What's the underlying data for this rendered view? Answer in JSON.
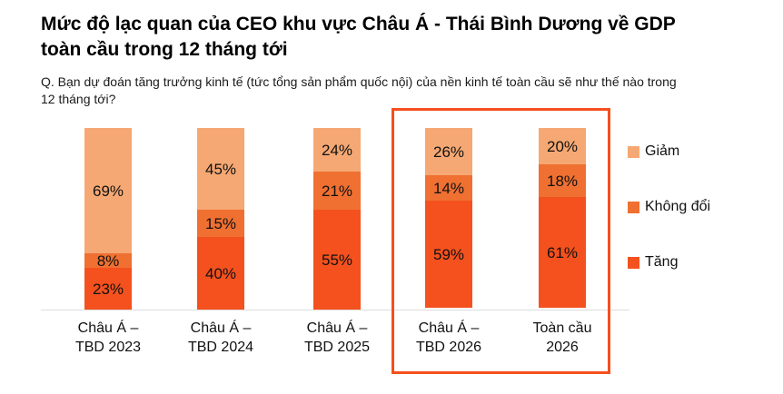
{
  "title": "Mức độ lạc quan của CEO khu vực Châu Á - Thái Bình Dương về GDP toàn cầu trong 12 tháng tới",
  "subtitle": "Q. Bạn dự đoán tăng trưởng kinh tế (tức tổng sản phẩm quốc nội) của nền kinh tế toàn cầu sẽ như thế nào trong 12 tháng tới?",
  "chart_data": {
    "type": "bar",
    "stacked": true,
    "unit": "%",
    "categories": [
      "Châu Á – TBD 2023",
      "Châu Á – TBD 2024",
      "Châu Á – TBD 2025",
      "Châu Á – TBD 2026",
      "Toàn cầu 2026"
    ],
    "series": [
      {
        "name": "Giảm",
        "color": "#F5A873",
        "values": [
          69,
          45,
          24,
          26,
          20
        ]
      },
      {
        "name": "Không đổi",
        "color": "#EF7031",
        "values": [
          8,
          15,
          21,
          14,
          18
        ]
      },
      {
        "name": "Tăng",
        "color": "#F4511E",
        "values": [
          23,
          40,
          55,
          59,
          61
        ]
      }
    ],
    "ylim": [
      0,
      100
    ],
    "grid": false,
    "data_labels": true,
    "legend_position": "right",
    "highlight": {
      "categories": [
        "Châu Á – TBD 2026",
        "Toàn cầu 2026"
      ],
      "border_color": "#F4501E"
    }
  }
}
